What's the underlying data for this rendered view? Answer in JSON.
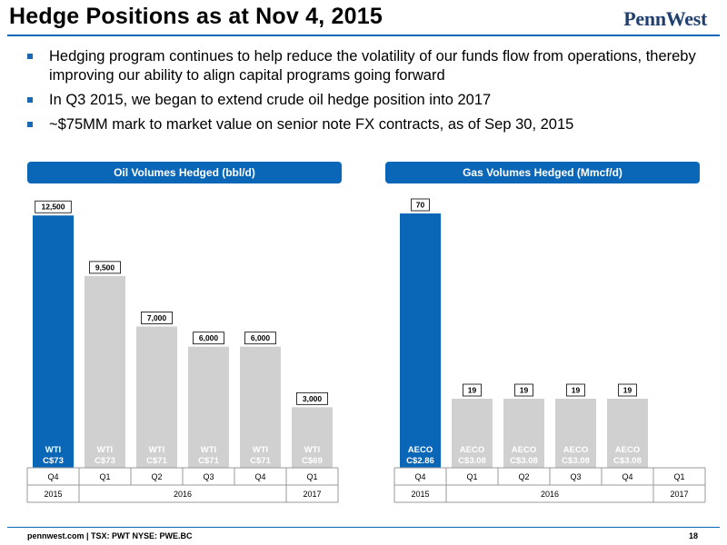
{
  "title": "Hedge Positions as at Nov 4, 2015",
  "logo": "PennWest",
  "bullets": [
    "Hedging program continues to help reduce the volatility of our funds flow from operations, thereby improving our ability to align capital programs going forward",
    "In Q3 2015, we began to extend crude oil hedge position into 2017",
    "~$75MM mark to market value on senior note FX contracts, as of Sep 30, 2015"
  ],
  "colors": {
    "accent": "#0a66b7",
    "highlight_bar": "#0a66b7",
    "other_bar": "#d0d0d0"
  },
  "chart_data": [
    {
      "type": "bar",
      "title": "Oil Volumes Hedged (bbl/d)",
      "categories": [
        "Q4",
        "Q1",
        "Q2",
        "Q3",
        "Q4",
        "Q1"
      ],
      "years": [
        {
          "label": "2015",
          "span": 1
        },
        {
          "label": "2016",
          "span": 4
        },
        {
          "label": "2017",
          "span": 1
        }
      ],
      "values": [
        12500,
        9500,
        7000,
        6000,
        6000,
        3000
      ],
      "value_labels": [
        "12,500",
        "9,500",
        "7,000",
        "6,000",
        "6,000",
        "3,000"
      ],
      "bar_text_line1": [
        "WTI",
        "WTI",
        "WTI",
        "WTI",
        "WTI",
        "WTI"
      ],
      "bar_text_line2": [
        "C$73",
        "C$73",
        "C$71",
        "C$71",
        "C$71",
        "C$69"
      ],
      "highlight_index": 0,
      "ylim": [
        0,
        13500
      ]
    },
    {
      "type": "bar",
      "title": "Gas Volumes Hedged (Mmcf/d)",
      "categories": [
        "Q4",
        "Q1",
        "Q2",
        "Q3",
        "Q4",
        "Q1"
      ],
      "years": [
        {
          "label": "2015",
          "span": 1
        },
        {
          "label": "2016",
          "span": 4
        },
        {
          "label": "2017",
          "span": 1
        }
      ],
      "values": [
        70,
        19,
        19,
        19,
        19,
        null
      ],
      "value_labels": [
        "70",
        "19",
        "19",
        "19",
        "19",
        ""
      ],
      "bar_text_line1": [
        "AECO",
        "AECO",
        "AECO",
        "AECO",
        "AECO",
        ""
      ],
      "bar_text_line2": [
        "C$2.86",
        "C$3.08",
        "C$3.08",
        "C$3.08",
        "C$3.08",
        ""
      ],
      "highlight_index": 0,
      "ylim": [
        0,
        75
      ]
    }
  ],
  "footer": {
    "left": "pennwest.com | TSX: PWT  NYSE: PWE.BC",
    "page": "18"
  }
}
